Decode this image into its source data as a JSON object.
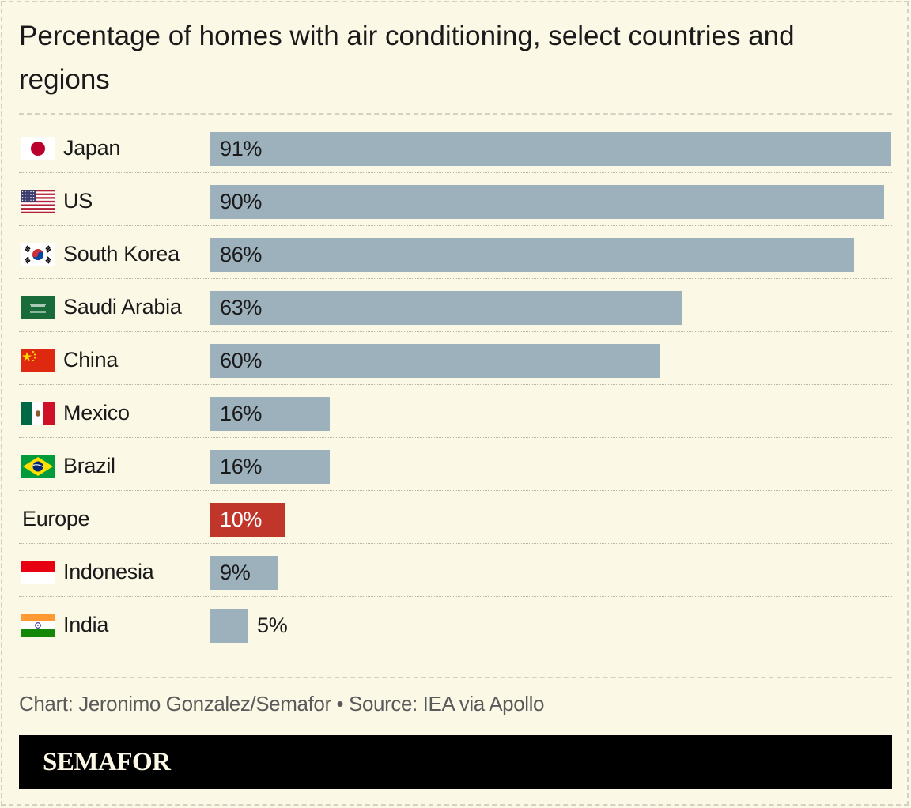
{
  "title": "Percentage of homes with air conditioning, select countries and regions",
  "credit": "Chart: Jeronimo Gonzalez/Semafor • Source: IEA via Apollo",
  "brand": "SEMAFOR",
  "colors": {
    "background": "#fcf8e6",
    "bar_default": "#9cb1bc",
    "bar_highlight": "#c0362a",
    "footer": "#000000"
  },
  "chart_data": {
    "type": "bar",
    "orientation": "horizontal",
    "title": "Percentage of homes with air conditioning, select countries and regions",
    "xlabel": "",
    "ylabel": "",
    "xlim": [
      0,
      91
    ],
    "grid": false,
    "categories": [
      "Japan",
      "US",
      "South Korea",
      "Saudi Arabia",
      "China",
      "Mexico",
      "Brazil",
      "Europe",
      "Indonesia",
      "India"
    ],
    "values": [
      91,
      90,
      86,
      63,
      60,
      16,
      16,
      10,
      9,
      5
    ],
    "value_labels": [
      "91%",
      "90%",
      "86%",
      "63%",
      "60%",
      "16%",
      "16%",
      "10%",
      "9%",
      "5%"
    ],
    "flags": [
      "japan-flag-icon",
      "us-flag-icon",
      "south-korea-flag-icon",
      "saudi-arabia-flag-icon",
      "china-flag-icon",
      "mexico-flag-icon",
      "brazil-flag-icon",
      "",
      "indonesia-flag-icon",
      "india-flag-icon"
    ],
    "highlight": "Europe"
  }
}
